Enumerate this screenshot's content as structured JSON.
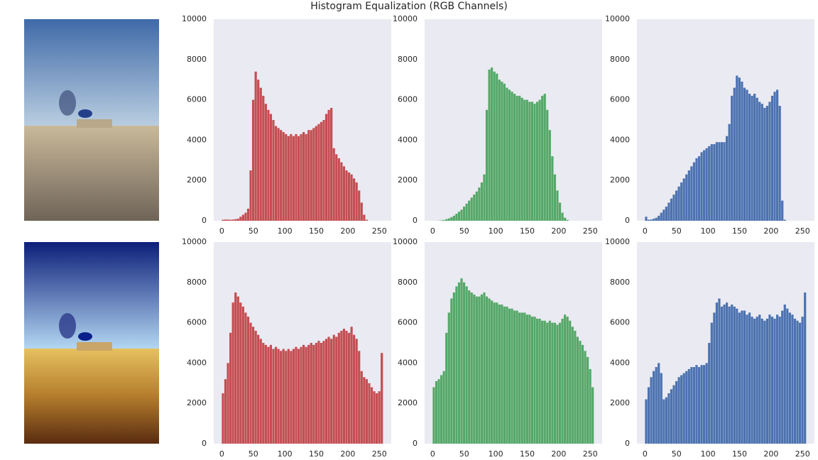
{
  "title": "Histogram Equalization (RGB Channels)",
  "chart_data": [
    {
      "type": "histogram",
      "color": "#c44e52",
      "xlim": [
        -12.8,
        268.8
      ],
      "ylim": [
        0,
        10000
      ],
      "xticks": [
        0,
        50,
        100,
        150,
        200,
        250
      ],
      "yticks": [
        0,
        2000,
        4000,
        6000,
        8000,
        10000
      ],
      "grid": false,
      "bins": [
        0,
        4,
        8,
        12,
        16,
        20,
        24,
        28,
        32,
        36,
        40,
        44,
        48,
        52,
        56,
        60,
        64,
        68,
        72,
        76,
        80,
        84,
        88,
        92,
        96,
        100,
        104,
        108,
        112,
        116,
        120,
        124,
        128,
        132,
        136,
        140,
        144,
        148,
        152,
        156,
        160,
        164,
        168,
        172,
        176,
        180,
        184,
        188,
        192,
        196,
        200,
        204,
        208,
        212,
        216,
        220,
        224,
        228,
        232,
        236,
        240,
        244,
        248,
        252,
        256
      ],
      "counts": [
        50,
        60,
        60,
        50,
        60,
        80,
        100,
        200,
        300,
        400,
        600,
        2500,
        6000,
        7400,
        7000,
        6600,
        6200,
        5800,
        5500,
        5300,
        5000,
        4700,
        4600,
        4500,
        4400,
        4300,
        4200,
        4300,
        4200,
        4300,
        4200,
        4300,
        4400,
        4300,
        4500,
        4500,
        4600,
        4700,
        4800,
        4900,
        5000,
        5300,
        5500,
        5600,
        3600,
        3300,
        3100,
        2900,
        2700,
        2500,
        2400,
        2300,
        2100,
        1900,
        1500,
        900,
        300,
        50,
        0,
        0,
        0,
        0,
        0,
        0
      ]
    },
    {
      "type": "histogram",
      "color": "#55a868",
      "xlim": [
        -12.8,
        268.8
      ],
      "ylim": [
        0,
        10000
      ],
      "xticks": [
        0,
        50,
        100,
        150,
        200,
        250
      ],
      "yticks": [
        0,
        2000,
        4000,
        6000,
        8000,
        10000
      ],
      "grid": false,
      "bins": [
        0,
        4,
        8,
        12,
        16,
        20,
        24,
        28,
        32,
        36,
        40,
        44,
        48,
        52,
        56,
        60,
        64,
        68,
        72,
        76,
        80,
        84,
        88,
        92,
        96,
        100,
        104,
        108,
        112,
        116,
        120,
        124,
        128,
        132,
        136,
        140,
        144,
        148,
        152,
        156,
        160,
        164,
        168,
        172,
        176,
        180,
        184,
        188,
        192,
        196,
        200,
        204,
        208,
        212,
        216,
        220,
        224,
        228,
        232,
        236,
        240,
        244,
        248,
        252,
        256
      ],
      "counts": [
        0,
        0,
        10,
        20,
        40,
        80,
        120,
        180,
        250,
        350,
        450,
        550,
        700,
        850,
        1000,
        1150,
        1300,
        1450,
        1650,
        1900,
        2300,
        5500,
        7500,
        7600,
        7400,
        7300,
        7000,
        6900,
        6800,
        6600,
        6500,
        6400,
        6300,
        6200,
        6200,
        6100,
        6000,
        6000,
        5900,
        5900,
        5800,
        5900,
        6000,
        6200,
        6300,
        5500,
        4500,
        3200,
        2300,
        1500,
        900,
        400,
        150,
        40,
        0,
        0,
        0,
        0,
        0,
        0,
        0,
        0,
        0,
        0
      ]
    },
    {
      "type": "histogram",
      "color": "#4c72b0",
      "xlim": [
        -12.8,
        268.8
      ],
      "ylim": [
        0,
        10000
      ],
      "xticks": [
        0,
        50,
        100,
        150,
        200,
        250
      ],
      "yticks": [
        0,
        2000,
        4000,
        6000,
        8000,
        10000
      ],
      "grid": false,
      "bins": [
        0,
        4,
        8,
        12,
        16,
        20,
        24,
        28,
        32,
        36,
        40,
        44,
        48,
        52,
        56,
        60,
        64,
        68,
        72,
        76,
        80,
        84,
        88,
        92,
        96,
        100,
        104,
        108,
        112,
        116,
        120,
        124,
        128,
        132,
        136,
        140,
        144,
        148,
        152,
        156,
        160,
        164,
        168,
        172,
        176,
        180,
        184,
        188,
        192,
        196,
        200,
        204,
        208,
        212,
        216,
        220,
        224,
        228,
        232,
        236,
        240,
        244,
        248,
        252,
        256
      ],
      "counts": [
        200,
        50,
        60,
        100,
        150,
        250,
        400,
        550,
        700,
        900,
        1100,
        1300,
        1500,
        1700,
        1900,
        2100,
        2300,
        2500,
        2700,
        2900,
        3100,
        3200,
        3400,
        3500,
        3600,
        3700,
        3800,
        3800,
        3900,
        3900,
        3900,
        3900,
        4200,
        4800,
        6200,
        6600,
        7200,
        7100,
        6900,
        6600,
        6500,
        6300,
        6200,
        6300,
        6100,
        5900,
        5800,
        5600,
        5700,
        5900,
        6200,
        6400,
        6500,
        5700,
        1000,
        50,
        0,
        0,
        0,
        0,
        0,
        0,
        0,
        0
      ]
    },
    {
      "type": "histogram",
      "color": "#c44e52",
      "xlim": [
        -12.8,
        268.8
      ],
      "ylim": [
        0,
        10000
      ],
      "xticks": [
        0,
        50,
        100,
        150,
        200,
        250
      ],
      "yticks": [
        0,
        2000,
        4000,
        6000,
        8000,
        10000
      ],
      "grid": false,
      "bins": [
        0,
        4,
        8,
        12,
        16,
        20,
        24,
        28,
        32,
        36,
        40,
        44,
        48,
        52,
        56,
        60,
        64,
        68,
        72,
        76,
        80,
        84,
        88,
        92,
        96,
        100,
        104,
        108,
        112,
        116,
        120,
        124,
        128,
        132,
        136,
        140,
        144,
        148,
        152,
        156,
        160,
        164,
        168,
        172,
        176,
        180,
        184,
        188,
        192,
        196,
        200,
        204,
        208,
        212,
        216,
        220,
        224,
        228,
        232,
        236,
        240,
        244,
        248,
        252,
        256
      ],
      "counts": [
        2500,
        3200,
        4000,
        5500,
        7000,
        7500,
        7300,
        7000,
        6800,
        6500,
        6300,
        6000,
        5800,
        5600,
        5400,
        5200,
        5000,
        4900,
        4800,
        4900,
        4700,
        4800,
        4700,
        4600,
        4700,
        4600,
        4700,
        4600,
        4700,
        4800,
        4700,
        4800,
        4900,
        4800,
        4900,
        5000,
        4900,
        5000,
        5100,
        5000,
        5100,
        5200,
        5300,
        5200,
        5400,
        5300,
        5500,
        5600,
        5700,
        5600,
        5500,
        5800,
        5400,
        5200,
        4600,
        3600,
        3300,
        3200,
        3000,
        2800,
        2600,
        2500,
        2600,
        4500
      ]
    },
    {
      "type": "histogram",
      "color": "#55a868",
      "xlim": [
        -12.8,
        268.8
      ],
      "ylim": [
        0,
        10000
      ],
      "xticks": [
        0,
        50,
        100,
        150,
        200,
        250
      ],
      "yticks": [
        0,
        2000,
        4000,
        6000,
        8000,
        10000
      ],
      "grid": false,
      "bins": [
        0,
        4,
        8,
        12,
        16,
        20,
        24,
        28,
        32,
        36,
        40,
        44,
        48,
        52,
        56,
        60,
        64,
        68,
        72,
        76,
        80,
        84,
        88,
        92,
        96,
        100,
        104,
        108,
        112,
        116,
        120,
        124,
        128,
        132,
        136,
        140,
        144,
        148,
        152,
        156,
        160,
        164,
        168,
        172,
        176,
        180,
        184,
        188,
        192,
        196,
        200,
        204,
        208,
        212,
        216,
        220,
        224,
        228,
        232,
        236,
        240,
        244,
        248,
        252,
        256
      ],
      "counts": [
        2800,
        3100,
        3200,
        3400,
        3600,
        5500,
        6500,
        7200,
        7500,
        7800,
        8000,
        8200,
        8000,
        7800,
        7600,
        7500,
        7400,
        7300,
        7300,
        7400,
        7500,
        7300,
        7200,
        7100,
        7000,
        7000,
        6900,
        6900,
        6800,
        6800,
        6700,
        6700,
        6600,
        6600,
        6500,
        6500,
        6500,
        6400,
        6400,
        6300,
        6300,
        6200,
        6200,
        6100,
        6100,
        6000,
        6100,
        6000,
        6000,
        5900,
        6000,
        6200,
        6400,
        6300,
        6100,
        5800,
        5600,
        5300,
        5100,
        4900,
        4600,
        4300,
        3700,
        2800
      ]
    },
    {
      "type": "histogram",
      "color": "#4c72b0",
      "xlim": [
        -12.8,
        268.8
      ],
      "ylim": [
        0,
        10000
      ],
      "xticks": [
        0,
        50,
        100,
        150,
        200,
        250
      ],
      "yticks": [
        0,
        2000,
        4000,
        6000,
        8000,
        10000
      ],
      "grid": false,
      "bins": [
        0,
        4,
        8,
        12,
        16,
        20,
        24,
        28,
        32,
        36,
        40,
        44,
        48,
        52,
        56,
        60,
        64,
        68,
        72,
        76,
        80,
        84,
        88,
        92,
        96,
        100,
        104,
        108,
        112,
        116,
        120,
        124,
        128,
        132,
        136,
        140,
        144,
        148,
        152,
        156,
        160,
        164,
        168,
        172,
        176,
        180,
        184,
        188,
        192,
        196,
        200,
        204,
        208,
        212,
        216,
        220,
        224,
        228,
        232,
        236,
        240,
        244,
        248,
        252,
        256
      ],
      "counts": [
        2200,
        2800,
        3300,
        3600,
        3800,
        4000,
        3500,
        2200,
        2300,
        2500,
        2700,
        2900,
        3100,
        3300,
        3400,
        3500,
        3600,
        3700,
        3800,
        3800,
        3900,
        3800,
        3900,
        3900,
        4000,
        5000,
        6000,
        6500,
        7000,
        7200,
        6800,
        6900,
        7000,
        6800,
        6900,
        6800,
        6700,
        6500,
        6600,
        6600,
        6400,
        6500,
        6300,
        6200,
        6300,
        6400,
        6200,
        6100,
        6200,
        6400,
        6300,
        6200,
        6400,
        6300,
        6600,
        6900,
        6700,
        6500,
        6400,
        6200,
        6100,
        6000,
        6300,
        7500
      ]
    }
  ]
}
